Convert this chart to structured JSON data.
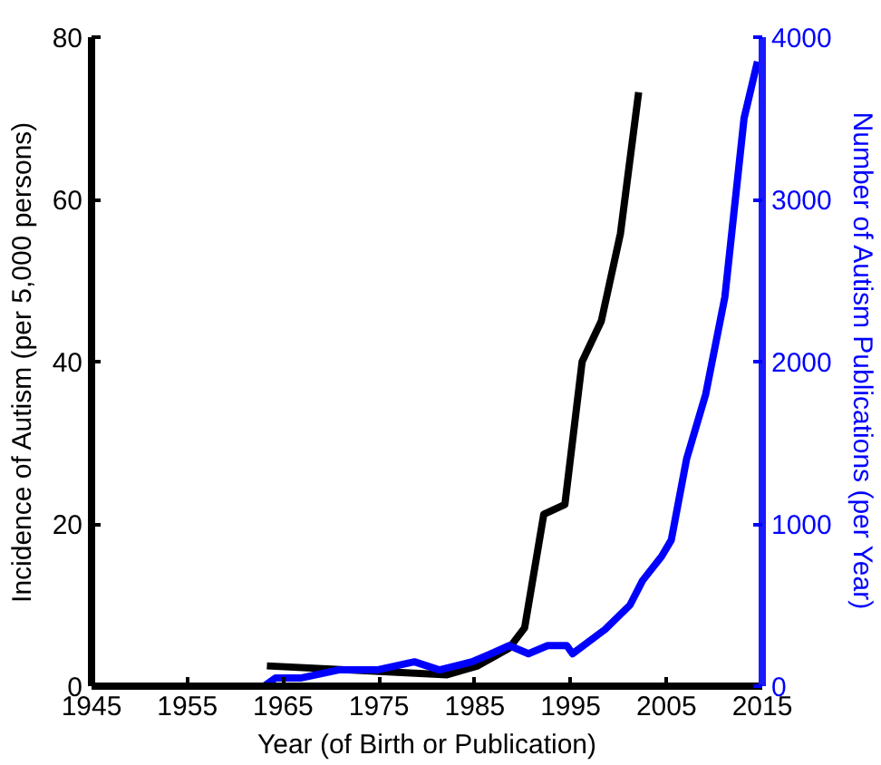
{
  "chart_data": {
    "type": "line",
    "xlabel": "Year (of Birth or Publication)",
    "ylabel": "Incidence of Autism (per 5,000 persons)",
    "y2label": "Number of Autism Publications (per Year)",
    "xlim": [
      1945,
      2015
    ],
    "xticks": [
      1945,
      1955,
      1965,
      1975,
      1985,
      1995,
      2005,
      2015
    ],
    "ylim": [
      0,
      80
    ],
    "yticks": [
      0,
      20,
      40,
      60,
      80
    ],
    "y2lim": [
      0,
      4000
    ],
    "y2ticks": [
      0,
      1000,
      2000,
      3000,
      4000
    ],
    "grid": false,
    "line_style": "solid",
    "series": [
      {
        "color": "#000000",
        "x": [
          1963.3,
          1982.1,
          1985.3,
          1988.6,
          1990.2,
          1992.2,
          1994.4,
          1996.2,
          1998.2,
          2000.2,
          2002.1
        ],
        "values": [
          2.5,
          1.4,
          2.5,
          4.7,
          7.2,
          21.2,
          22.4,
          40,
          45,
          55.8,
          73.2
        ]
      },
      {
        "color": "#0000ff",
        "axis": "y2",
        "x": [
          1945.6,
          1963,
          1964.2,
          1966.8,
          1970.8,
          1974.8,
          1978.7,
          1981.3,
          1984.7,
          1986.7,
          1988.6,
          1990.6,
          1992.6,
          1994.6,
          1995.2,
          1998.6,
          2001.2,
          2002.5,
          2004.5,
          2005.5,
          2007.1,
          2009.1,
          2011.1,
          2013.1,
          2014.5
        ],
        "values": [
          0,
          0,
          50,
          50,
          100,
          100,
          150,
          100,
          150,
          200,
          250,
          200,
          250,
          250,
          200,
          350,
          500,
          650,
          800,
          900,
          1400,
          1800,
          2400,
          3500,
          3850
        ]
      }
    ]
  }
}
